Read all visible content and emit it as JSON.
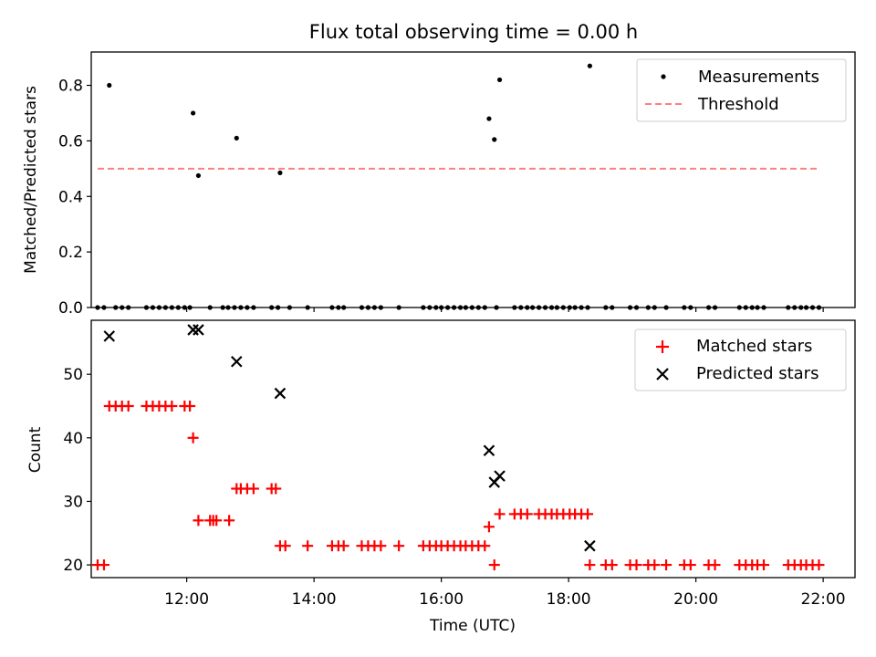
{
  "chart_data": [
    {
      "type": "scatter",
      "title": "Flux total observing time = 0.00 h",
      "xlabel": "",
      "ylabel": "Matched/Predicted stars",
      "xlim": [
        "10:30",
        "22:30"
      ],
      "ylim": [
        0,
        0.92
      ],
      "yticks": [
        0.0,
        0.2,
        0.4,
        0.6,
        0.8
      ],
      "ytick_labels": [
        "0.0",
        "0.2",
        "0.4",
        "0.6",
        "0.8"
      ],
      "xticks": [
        "12:00",
        "14:00",
        "16:00",
        "18:00",
        "20:00",
        "22:00"
      ],
      "grid": false,
      "legend_position": "top-right",
      "series": [
        {
          "name": "Measurements",
          "color": "#000000",
          "marker": "dot",
          "points": [
            {
              "x": "10:36",
              "y": 0.0
            },
            {
              "x": "10:42",
              "y": 0.0
            },
            {
              "x": "10:47",
              "y": 0.8
            },
            {
              "x": "10:53",
              "y": 0.0
            },
            {
              "x": "10:59",
              "y": 0.0
            },
            {
              "x": "11:05",
              "y": 0.0
            },
            {
              "x": "11:22",
              "y": 0.0
            },
            {
              "x": "11:28",
              "y": 0.0
            },
            {
              "x": "11:34",
              "y": 0.0
            },
            {
              "x": "11:40",
              "y": 0.0
            },
            {
              "x": "11:46",
              "y": 0.0
            },
            {
              "x": "11:52",
              "y": 0.0
            },
            {
              "x": "11:58",
              "y": 0.0
            },
            {
              "x": "12:03",
              "y": 0.0
            },
            {
              "x": "12:06",
              "y": 0.7
            },
            {
              "x": "12:11",
              "y": 0.475
            },
            {
              "x": "12:22",
              "y": 0.0
            },
            {
              "x": "12:34",
              "y": 0.0
            },
            {
              "x": "12:39",
              "y": 0.0
            },
            {
              "x": "12:45",
              "y": 0.0
            },
            {
              "x": "12:47",
              "y": 0.61
            },
            {
              "x": "12:51",
              "y": 0.0
            },
            {
              "x": "12:57",
              "y": 0.0
            },
            {
              "x": "13:03",
              "y": 0.0
            },
            {
              "x": "13:20",
              "y": 0.0
            },
            {
              "x": "13:26",
              "y": 0.0
            },
            {
              "x": "13:28",
              "y": 0.485
            },
            {
              "x": "13:37",
              "y": 0.0
            },
            {
              "x": "13:54",
              "y": 0.0
            },
            {
              "x": "14:17",
              "y": 0.0
            },
            {
              "x": "14:23",
              "y": 0.0
            },
            {
              "x": "14:28",
              "y": 0.0
            },
            {
              "x": "14:45",
              "y": 0.0
            },
            {
              "x": "14:51",
              "y": 0.0
            },
            {
              "x": "14:57",
              "y": 0.0
            },
            {
              "x": "15:03",
              "y": 0.0
            },
            {
              "x": "15:20",
              "y": 0.0
            },
            {
              "x": "15:43",
              "y": 0.0
            },
            {
              "x": "15:49",
              "y": 0.0
            },
            {
              "x": "15:55",
              "y": 0.0
            },
            {
              "x": "16:00",
              "y": 0.0
            },
            {
              "x": "16:06",
              "y": 0.0
            },
            {
              "x": "16:12",
              "y": 0.0
            },
            {
              "x": "16:18",
              "y": 0.0
            },
            {
              "x": "16:23",
              "y": 0.0
            },
            {
              "x": "16:29",
              "y": 0.0
            },
            {
              "x": "16:35",
              "y": 0.0
            },
            {
              "x": "16:41",
              "y": 0.0
            },
            {
              "x": "16:45",
              "y": 0.68
            },
            {
              "x": "16:50",
              "y": 0.605
            },
            {
              "x": "16:52",
              "y": 0.0
            },
            {
              "x": "16:55",
              "y": 0.82
            },
            {
              "x": "17:09",
              "y": 0.0
            },
            {
              "x": "17:15",
              "y": 0.0
            },
            {
              "x": "17:21",
              "y": 0.0
            },
            {
              "x": "17:26",
              "y": 0.0
            },
            {
              "x": "17:32",
              "y": 0.0
            },
            {
              "x": "17:38",
              "y": 0.0
            },
            {
              "x": "17:44",
              "y": 0.0
            },
            {
              "x": "17:49",
              "y": 0.0
            },
            {
              "x": "17:55",
              "y": 0.0
            },
            {
              "x": "18:01",
              "y": 0.0
            },
            {
              "x": "18:06",
              "y": 0.0
            },
            {
              "x": "18:12",
              "y": 0.0
            },
            {
              "x": "18:18",
              "y": 0.0
            },
            {
              "x": "18:20",
              "y": 0.87
            },
            {
              "x": "18:35",
              "y": 0.0
            },
            {
              "x": "18:41",
              "y": 0.0
            },
            {
              "x": "18:58",
              "y": 0.0
            },
            {
              "x": "19:04",
              "y": 0.0
            },
            {
              "x": "19:15",
              "y": 0.0
            },
            {
              "x": "19:21",
              "y": 0.0
            },
            {
              "x": "19:32",
              "y": 0.0
            },
            {
              "x": "19:49",
              "y": 0.0
            },
            {
              "x": "19:55",
              "y": 0.0
            },
            {
              "x": "20:12",
              "y": 0.0
            },
            {
              "x": "20:18",
              "y": 0.0
            },
            {
              "x": "20:41",
              "y": 0.0
            },
            {
              "x": "20:47",
              "y": 0.0
            },
            {
              "x": "20:53",
              "y": 0.0
            },
            {
              "x": "20:58",
              "y": 0.0
            },
            {
              "x": "21:04",
              "y": 0.0
            },
            {
              "x": "21:27",
              "y": 0.0
            },
            {
              "x": "21:33",
              "y": 0.0
            },
            {
              "x": "21:39",
              "y": 0.0
            },
            {
              "x": "21:44",
              "y": 0.0
            },
            {
              "x": "21:50",
              "y": 0.0
            },
            {
              "x": "21:56",
              "y": 0.0
            }
          ]
        },
        {
          "name": "Threshold",
          "color": "#ff7f7f",
          "style": "dashed",
          "points": [
            {
              "x": "10:36",
              "y": 0.5
            },
            {
              "x": "21:56",
              "y": 0.5
            }
          ]
        }
      ]
    },
    {
      "type": "scatter",
      "title": "",
      "xlabel": "Time (UTC)",
      "ylabel": "Count",
      "xlim": [
        "10:30",
        "22:30"
      ],
      "ylim": [
        18,
        58.5
      ],
      "yticks": [
        20,
        30,
        40,
        50
      ],
      "ytick_labels": [
        "20",
        "30",
        "40",
        "50"
      ],
      "xticks": [
        "12:00",
        "14:00",
        "16:00",
        "18:00",
        "20:00",
        "22:00"
      ],
      "xtick_labels": [
        "12:00",
        "14:00",
        "16:00",
        "18:00",
        "20:00",
        "22:00"
      ],
      "grid": false,
      "legend_position": "top-right",
      "series": [
        {
          "name": "Matched stars",
          "color": "#ff0000",
          "marker": "plus",
          "points": [
            {
              "x": "10:36",
              "y": 20
            },
            {
              "x": "10:42",
              "y": 20
            },
            {
              "x": "10:47",
              "y": 45
            },
            {
              "x": "10:53",
              "y": 45
            },
            {
              "x": "10:59",
              "y": 45
            },
            {
              "x": "11:05",
              "y": 45
            },
            {
              "x": "11:22",
              "y": 45
            },
            {
              "x": "11:28",
              "y": 45
            },
            {
              "x": "11:34",
              "y": 45
            },
            {
              "x": "11:40",
              "y": 45
            },
            {
              "x": "11:46",
              "y": 45
            },
            {
              "x": "11:58",
              "y": 45
            },
            {
              "x": "12:03",
              "y": 45
            },
            {
              "x": "12:06",
              "y": 40
            },
            {
              "x": "12:11",
              "y": 27
            },
            {
              "x": "12:22",
              "y": 27
            },
            {
              "x": "12:25",
              "y": 27
            },
            {
              "x": "12:28",
              "y": 27
            },
            {
              "x": "12:40",
              "y": 27
            },
            {
              "x": "12:47",
              "y": 32
            },
            {
              "x": "12:51",
              "y": 32
            },
            {
              "x": "12:57",
              "y": 32
            },
            {
              "x": "13:03",
              "y": 32
            },
            {
              "x": "13:20",
              "y": 32
            },
            {
              "x": "13:24",
              "y": 32
            },
            {
              "x": "13:28",
              "y": 23
            },
            {
              "x": "13:33",
              "y": 23
            },
            {
              "x": "13:54",
              "y": 23
            },
            {
              "x": "14:17",
              "y": 23
            },
            {
              "x": "14:23",
              "y": 23
            },
            {
              "x": "14:28",
              "y": 23
            },
            {
              "x": "14:45",
              "y": 23
            },
            {
              "x": "14:51",
              "y": 23
            },
            {
              "x": "14:57",
              "y": 23
            },
            {
              "x": "15:03",
              "y": 23
            },
            {
              "x": "15:20",
              "y": 23
            },
            {
              "x": "15:43",
              "y": 23
            },
            {
              "x": "15:49",
              "y": 23
            },
            {
              "x": "15:55",
              "y": 23
            },
            {
              "x": "16:00",
              "y": 23
            },
            {
              "x": "16:06",
              "y": 23
            },
            {
              "x": "16:12",
              "y": 23
            },
            {
              "x": "16:18",
              "y": 23
            },
            {
              "x": "16:23",
              "y": 23
            },
            {
              "x": "16:29",
              "y": 23
            },
            {
              "x": "16:35",
              "y": 23
            },
            {
              "x": "16:41",
              "y": 23
            },
            {
              "x": "16:45",
              "y": 26
            },
            {
              "x": "16:50",
              "y": 20
            },
            {
              "x": "16:55",
              "y": 28
            },
            {
              "x": "17:09",
              "y": 28
            },
            {
              "x": "17:15",
              "y": 28
            },
            {
              "x": "17:21",
              "y": 28
            },
            {
              "x": "17:32",
              "y": 28
            },
            {
              "x": "17:38",
              "y": 28
            },
            {
              "x": "17:44",
              "y": 28
            },
            {
              "x": "17:49",
              "y": 28
            },
            {
              "x": "17:55",
              "y": 28
            },
            {
              "x": "18:01",
              "y": 28
            },
            {
              "x": "18:06",
              "y": 28
            },
            {
              "x": "18:12",
              "y": 28
            },
            {
              "x": "18:18",
              "y": 28
            },
            {
              "x": "18:20",
              "y": 20
            },
            {
              "x": "18:35",
              "y": 20
            },
            {
              "x": "18:41",
              "y": 20
            },
            {
              "x": "18:58",
              "y": 20
            },
            {
              "x": "19:04",
              "y": 20
            },
            {
              "x": "19:15",
              "y": 20
            },
            {
              "x": "19:21",
              "y": 20
            },
            {
              "x": "19:32",
              "y": 20
            },
            {
              "x": "19:49",
              "y": 20
            },
            {
              "x": "19:55",
              "y": 20
            },
            {
              "x": "20:12",
              "y": 20
            },
            {
              "x": "20:18",
              "y": 20
            },
            {
              "x": "20:41",
              "y": 20
            },
            {
              "x": "20:47",
              "y": 20
            },
            {
              "x": "20:53",
              "y": 20
            },
            {
              "x": "20:58",
              "y": 20
            },
            {
              "x": "21:04",
              "y": 20
            },
            {
              "x": "21:27",
              "y": 20
            },
            {
              "x": "21:33",
              "y": 20
            },
            {
              "x": "21:39",
              "y": 20
            },
            {
              "x": "21:44",
              "y": 20
            },
            {
              "x": "21:50",
              "y": 20
            },
            {
              "x": "21:56",
              "y": 20
            }
          ]
        },
        {
          "name": "Predicted stars",
          "color": "#000000",
          "marker": "x",
          "points": [
            {
              "x": "10:47",
              "y": 56
            },
            {
              "x": "12:06",
              "y": 57
            },
            {
              "x": "12:11",
              "y": 57
            },
            {
              "x": "12:47",
              "y": 52
            },
            {
              "x": "13:28",
              "y": 47
            },
            {
              "x": "16:45",
              "y": 38
            },
            {
              "x": "16:50",
              "y": 33
            },
            {
              "x": "16:55",
              "y": 34
            },
            {
              "x": "18:20",
              "y": 23
            }
          ]
        }
      ]
    }
  ]
}
